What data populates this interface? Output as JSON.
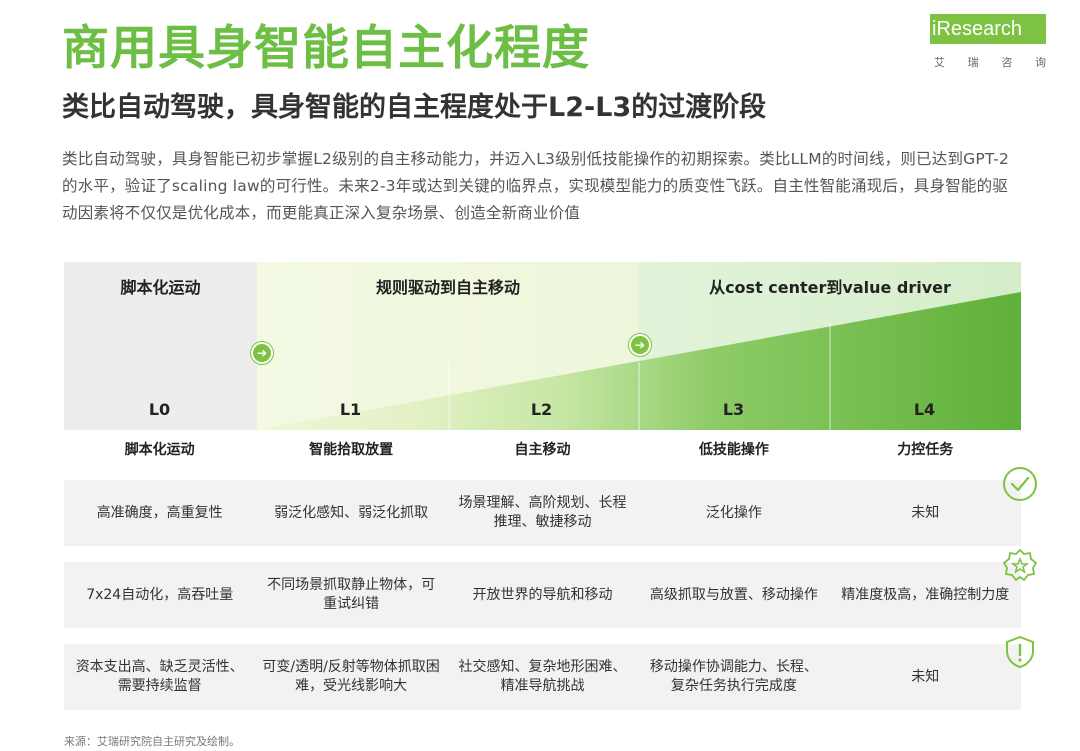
{
  "title": "商用具身智能自主化程度",
  "subtitle": "类比自动驾驶，具身智能的自主程度处于L2-L3的过渡阶段",
  "logo": {
    "text": "iResearch",
    "sub": [
      "艾",
      "瑞",
      "咨",
      "询"
    ]
  },
  "intro": "类比自动驾驶，具身智能已初步掌握L2级别的自主移动能力，并迈入L3级别低技能操作的初期探索。类比LLM的时间线，则已达到GPT-2的水平，验证了scaling law的可行性。未来2-3年或达到关键的临界点，实现模型能力的质变性飞跃。自主性智能涌现后，具身智能的驱动因素将不仅仅是优化成本，而更能真正深入复杂场景、创造全新商业价值",
  "phases": [
    {
      "label": "脚本化运动",
      "color": "#EDEDED"
    },
    {
      "label": "规则驱动到自主移动",
      "color": "#EEF6DC"
    },
    {
      "label": "从cost center到value driver",
      "color": "#D7EFCB"
    }
  ],
  "levels": [
    "L0",
    "L1",
    "L2",
    "L3",
    "L4"
  ],
  "columns": [
    "脚本化运动",
    "智能拾取放置",
    "自主移动",
    "低技能操作",
    "力控任务"
  ],
  "rows": [
    {
      "icon": "check-circle-icon",
      "cells": [
        "高准确度，高重复性",
        "弱泛化感知、弱泛化抓取",
        "场景理解、高阶规划、长程推理、敏捷移动",
        "泛化操作",
        "未知"
      ]
    },
    {
      "icon": "star-badge-icon",
      "cells": [
        "7x24自动化，高吞吐量",
        "不同场景抓取静止物体，可重试纠错",
        "开放世界的导航和移动",
        "高级抓取与放置、移动操作",
        "精准度极高，准确控制力度"
      ]
    },
    {
      "icon": "warning-shield-icon",
      "cells": [
        "资本支出高、缺乏灵活性、需要持续监督",
        "可变/透明/反射等物体抓取困难，受光线影响大",
        "社交感知、复杂地形困难、精准导航挑战",
        "移动操作协调能力、长程、复杂任务执行完成度",
        "未知"
      ]
    }
  ],
  "source": "来源：艾瑞研究院自主研究及绘制。",
  "colors": {
    "brand": "#6DBE45",
    "accent": "#7DC242"
  }
}
